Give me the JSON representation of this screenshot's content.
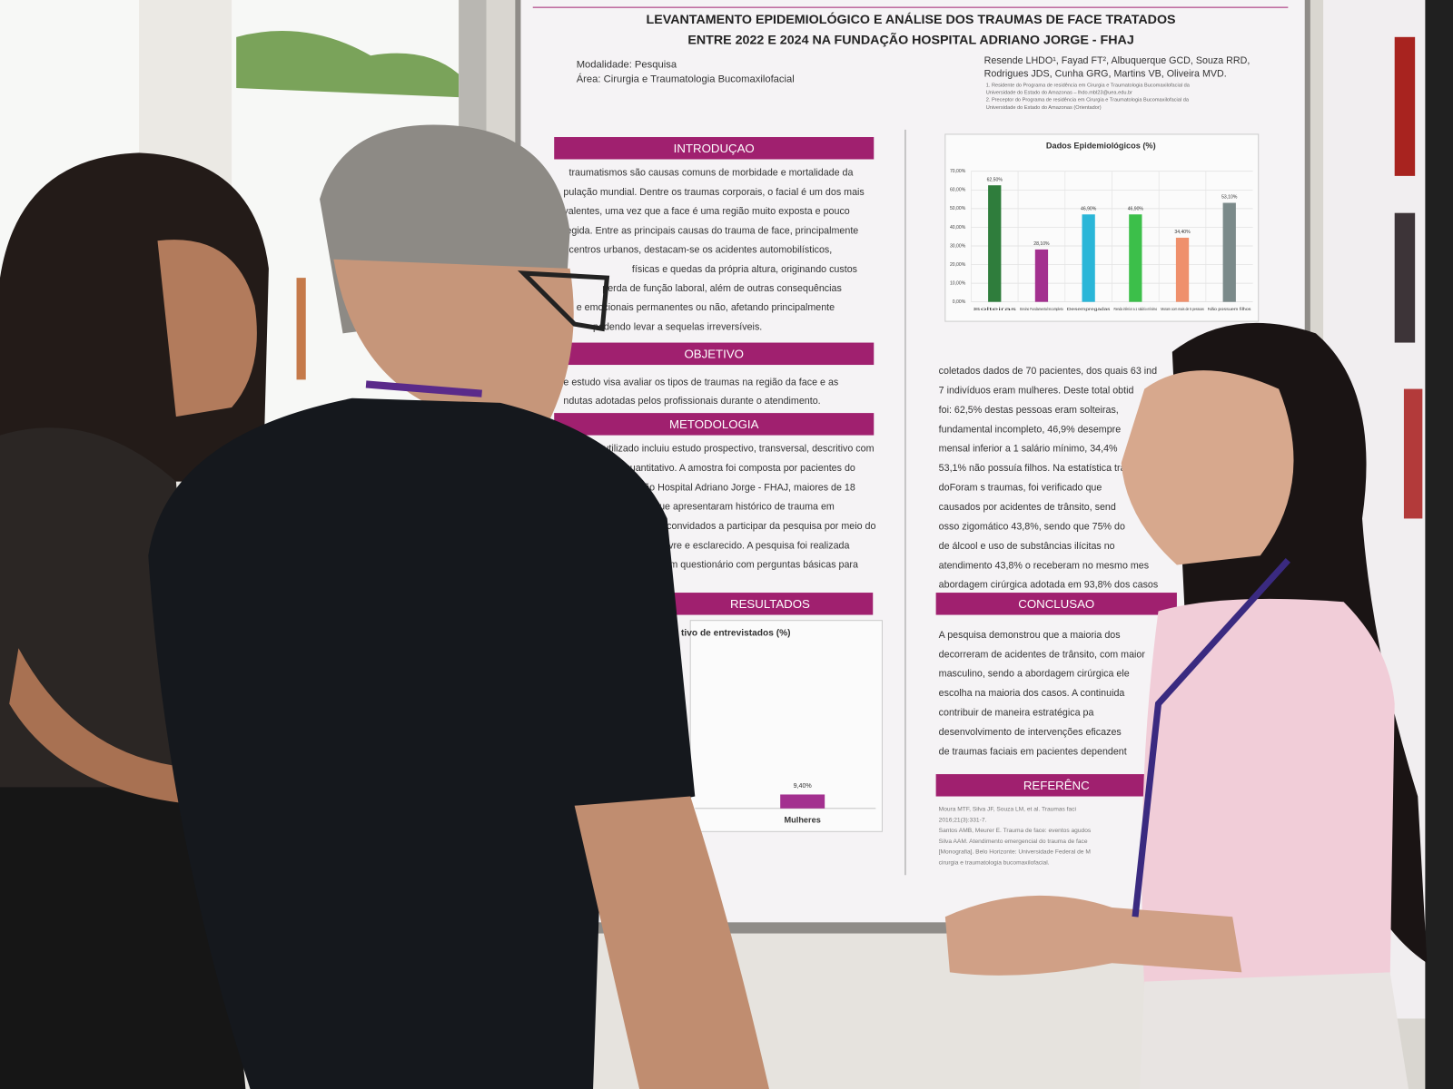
{
  "poster": {
    "title": [
      "LEVANTAMENTO EPIDEMIOLÓGICO E ANÁLISE DOS TRAUMAS DE FACE TRATADOS",
      "ENTRE 2022 E 2024  NA FUNDAÇÃO HOSPITAL ADRIANO JORGE - FHAJ"
    ],
    "modality": "Modalidade: Pesquisa",
    "area": "Área: Cirurgia e Traumatologia Bucomaxilofacial",
    "authors": [
      "Resende LHDO¹, Fayad FT², Albuquerque GCD, Souza RRD,",
      "Rodrigues JDS, Cunha GRG, Martins VB, Oliveira MVD."
    ],
    "affiliations": [
      "1. Residente do Programa de residência em Cirurgia e Traumatologia Bucomaxilofacial da",
      "Universidade do Estado do Amazonas – lhdo.mbl23@uea.edu.br",
      "2. Preceptor do Programa de residência em Cirurgia e Traumatologia Bucomaxilofacial da",
      "Universidade do Estado do Amazonas (Orientador)"
    ],
    "sections": [
      {
        "heading": "INTRODUÇAO",
        "lines": [
          "traumatismos são causas comuns de morbidade e mortalidade da",
          "pulação mundial. Dentre os traumas corporais, o facial é um dos mais",
          "valentes, uma vez que a face é uma região muito exposta e pouco",
          "tegida. Entre as principais causas do trauma de face, principalmente",
          "centros urbanos, destacam-se os acidentes automobilísticos,",
          "físicas e quedas da própria altura, originando custos",
          "perda de função laboral, além de outras consequências",
          "e emocionais permanentes ou não, afetando principalmente",
          "podendo levar a sequelas irreversíveis."
        ]
      },
      {
        "heading": "OBJETIVO",
        "lines": [
          "e estudo visa avaliar os tipos de traumas na região da face e as",
          "ndutas adotadas pelos profissionais durante o atendimento."
        ]
      },
      {
        "heading": "METODOLOGIA",
        "lines": [
          "étodo utilizado incluiu estudo prospectivo, transversal, descritivo com",
          "elineamento quantitativo. A amostra foi composta por pacientes do",
          "latório da Fundação Hospital Adriano Jorge - FHAJ, maiores de 18",
          "os gêneros, que apresentaram histórico de trauma em",
          "am convidados a participar da pesquisa por meio do",
          "o livre e esclarecido. A pesquisa foi realizada",
          "o um questionário com perguntas básicas para"
        ]
      },
      {
        "heading": "RESULTADOS",
        "lines": [
          "coletados dados de 70 pacientes, dos quais 63 ind",
          "7 indivíduos eram mulheres. Deste total obtid",
          "foi: 62,5% destas pessoas eram solteiras,",
          "fundamental incompleto, 46,9% desempre",
          "mensal inferior a 1 salário mínimo, 34,4%",
          "53,1% não possuía filhos. Na estatística tra",
          "doForam s traumas, foi verificado que",
          "causados por acidentes de trânsito, send",
          "osso zigomático 43,8%, sendo que 75% do",
          "de álcool e uso de substâncias ilícitas no",
          "atendimento 43,8% o receberam no mesmo mes",
          "abordagem cirúrgica adotada em 93,8% dos casos"
        ]
      },
      {
        "heading": "CONCLUSAO",
        "lines": [
          "A pesquisa demonstrou que a maioria dos",
          "decorreram de acidentes de trânsito, com maior",
          "masculino, sendo a abordagem cirúrgica ele",
          "escolha na maioria dos casos. A continuida",
          "contribuir de maneira estratégica pa",
          "desenvolvimento de intervenções eficazes",
          "de traumas faciais em pacientes dependent"
        ]
      },
      {
        "heading": "REFERÊNC",
        "lines": [
          "Moura MTF, Silva JF, Souza LM, et al. Traumas faci",
          "2016;21(3):331-7.",
          "Santos AMB, Meurer E. Trauma de face: eventos agudos",
          "Silva AAM. Atendimento emergencial do trauma de face",
          "[Monografia]. Belo Horizonte: Universidade Federal de M",
          "cirurgia e traumatologia bucomaxilofacial."
        ]
      }
    ],
    "epidemiological_chart": {
      "type": "bar",
      "title": "Dados Epidemiológicos (%)",
      "categories": [
        "Solteiras",
        "Ensino Fundamental Incompleto",
        "Desempregadas",
        "Renda inferior a 1 salário mínimo",
        "Moram com mais de 5 pessoas",
        "Não possuem filhos"
      ],
      "values": [
        62.5,
        28.1,
        46.9,
        46.9,
        34.4,
        53.1
      ],
      "value_labels": [
        "62,50%",
        "28,10%",
        "46,90%",
        "46,90%",
        "34,40%",
        "53,10%"
      ],
      "colors": [
        "#2f7d3c",
        "#a3308f",
        "#2ab6d8",
        "#3cbf4a",
        "#ef906c",
        "#7b8a8a"
      ],
      "ylim": [
        0,
        70
      ],
      "yticks": [
        {
          "value": 0,
          "label": "0,00%"
        },
        {
          "value": 10,
          "label": "10,00%"
        },
        {
          "value": 20,
          "label": "20,00%"
        },
        {
          "value": 30,
          "label": "30,00%"
        },
        {
          "value": 40,
          "label": "40,00%"
        },
        {
          "value": 50,
          "label": "50,00%"
        },
        {
          "value": 60,
          "label": "60,00%"
        },
        {
          "value": 70,
          "label": "70,00%"
        }
      ],
      "grid": true
    },
    "interviewees_chart": {
      "type": "bar",
      "title": "tivo de entrevistados (%)",
      "categories": [
        "Mulheres"
      ],
      "values": [
        9.4
      ],
      "value_labels": [
        "9,40%"
      ],
      "color": "#a3308f",
      "ylim": [
        0,
        100
      ]
    }
  }
}
